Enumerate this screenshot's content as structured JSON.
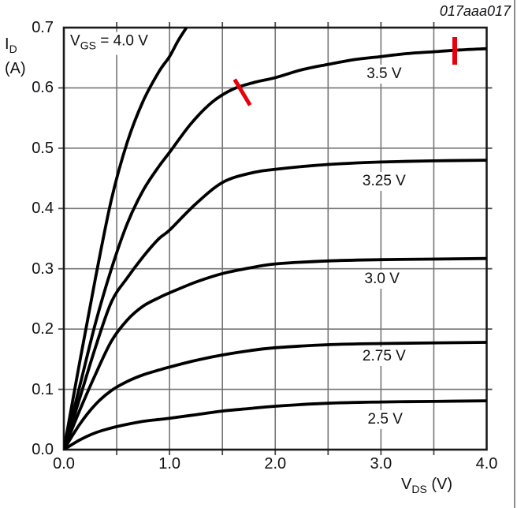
{
  "figure_id": "017aaa017",
  "colors": {
    "curve": "#000000",
    "grid": "#757575",
    "frame": "#1a1a1a",
    "tick": "#4a4a4a",
    "marker_red": "#e8000b",
    "page_border": "#8d8d8d",
    "text": "#101114"
  },
  "y_axis": {
    "sym": "I",
    "sub": "D",
    "unit": "(A)",
    "ticks": [
      "0.7",
      "0.6",
      "0.5",
      "0.4",
      "0.3",
      "0.2",
      "0.1",
      "0.0"
    ]
  },
  "x_axis": {
    "sym": "V",
    "sub": "DS",
    "unit": "(V)",
    "ticks": [
      "0.0",
      "1.0",
      "2.0",
      "3.0",
      "4.0"
    ]
  },
  "chart_data": {
    "type": "line",
    "title": "",
    "xlabel": "VDS (V)",
    "ylabel": "ID (A)",
    "xlim": [
      0,
      4
    ],
    "ylim": [
      0,
      0.7
    ],
    "x_grid_step": 0.5,
    "y_grid_step": 0.1,
    "grid": true,
    "series": [
      {
        "name": "VGS = 4.0 V",
        "vgs": "4.0 V",
        "points": [
          [
            0,
            0
          ],
          [
            0.15,
            0.145
          ],
          [
            0.3,
            0.285
          ],
          [
            0.45,
            0.415
          ],
          [
            0.6,
            0.51
          ],
          [
            0.75,
            0.578
          ],
          [
            0.9,
            0.627
          ],
          [
            1.0,
            0.652
          ],
          [
            1.08,
            0.678
          ],
          [
            1.16,
            0.7
          ]
        ]
      },
      {
        "name": "VGS = 3.5 V",
        "vgs": "3.5 V",
        "points": [
          [
            0,
            0
          ],
          [
            0.15,
            0.105
          ],
          [
            0.3,
            0.21
          ],
          [
            0.45,
            0.3
          ],
          [
            0.6,
            0.375
          ],
          [
            0.75,
            0.43
          ],
          [
            0.9,
            0.47
          ],
          [
            1.0,
            0.493
          ],
          [
            1.2,
            0.54
          ],
          [
            1.4,
            0.576
          ],
          [
            1.6,
            0.598
          ],
          [
            1.8,
            0.609
          ],
          [
            2.0,
            0.617
          ],
          [
            2.25,
            0.63
          ],
          [
            2.5,
            0.639
          ],
          [
            2.75,
            0.647
          ],
          [
            3.0,
            0.652
          ],
          [
            3.25,
            0.657
          ],
          [
            3.5,
            0.66
          ],
          [
            3.75,
            0.663
          ],
          [
            4.0,
            0.665
          ]
        ]
      },
      {
        "name": "VGS = 3.25 V",
        "vgs": "3.25 V",
        "points": [
          [
            0,
            0
          ],
          [
            0.15,
            0.085
          ],
          [
            0.3,
            0.17
          ],
          [
            0.45,
            0.245
          ],
          [
            0.6,
            0.285
          ],
          [
            0.75,
            0.32
          ],
          [
            0.9,
            0.35
          ],
          [
            1.0,
            0.364
          ],
          [
            1.25,
            0.408
          ],
          [
            1.5,
            0.443
          ],
          [
            1.75,
            0.458
          ],
          [
            2.0,
            0.465
          ],
          [
            2.5,
            0.473
          ],
          [
            3.0,
            0.477
          ],
          [
            3.5,
            0.479
          ],
          [
            4.0,
            0.48
          ]
        ]
      },
      {
        "name": "VGS = 3.0 V",
        "vgs": "3.0 V",
        "points": [
          [
            0,
            0
          ],
          [
            0.15,
            0.065
          ],
          [
            0.3,
            0.125
          ],
          [
            0.45,
            0.18
          ],
          [
            0.6,
            0.215
          ],
          [
            0.75,
            0.238
          ],
          [
            0.9,
            0.252
          ],
          [
            1.0,
            0.26
          ],
          [
            1.25,
            0.278
          ],
          [
            1.5,
            0.292
          ],
          [
            1.75,
            0.301
          ],
          [
            2.0,
            0.308
          ],
          [
            2.5,
            0.313
          ],
          [
            3.0,
            0.315
          ],
          [
            4.0,
            0.317
          ]
        ]
      },
      {
        "name": "VGS = 2.75 V",
        "vgs": "2.75 V",
        "points": [
          [
            0,
            0
          ],
          [
            0.15,
            0.042
          ],
          [
            0.3,
            0.075
          ],
          [
            0.45,
            0.098
          ],
          [
            0.6,
            0.113
          ],
          [
            0.75,
            0.124
          ],
          [
            0.9,
            0.132
          ],
          [
            1.0,
            0.137
          ],
          [
            1.25,
            0.148
          ],
          [
            1.5,
            0.157
          ],
          [
            1.75,
            0.164
          ],
          [
            2.0,
            0.169
          ],
          [
            2.5,
            0.174
          ],
          [
            3.0,
            0.176
          ],
          [
            4.0,
            0.178
          ]
        ]
      },
      {
        "name": "VGS = 2.5 V",
        "vgs": "2.5 V",
        "points": [
          [
            0,
            0
          ],
          [
            0.15,
            0.016
          ],
          [
            0.3,
            0.028
          ],
          [
            0.45,
            0.036
          ],
          [
            0.6,
            0.042
          ],
          [
            0.75,
            0.047
          ],
          [
            0.9,
            0.05
          ],
          [
            1.0,
            0.052
          ],
          [
            1.25,
            0.058
          ],
          [
            1.5,
            0.064
          ],
          [
            1.75,
            0.068
          ],
          [
            2.0,
            0.072
          ],
          [
            2.5,
            0.077
          ],
          [
            3.0,
            0.079
          ],
          [
            3.5,
            0.08
          ],
          [
            4.0,
            0.081
          ]
        ]
      }
    ],
    "curve_labels": [
      {
        "main": "V",
        "sub": "GS",
        "rest": " = 4.0 V",
        "x": 0.03,
        "y": 0.674,
        "align": "left"
      },
      {
        "main": "",
        "sub": "",
        "rest": "3.5 V",
        "x": 3.03,
        "y": 0.623,
        "align": "center"
      },
      {
        "main": "",
        "sub": "",
        "rest": "3.25 V",
        "x": 3.03,
        "y": 0.445,
        "align": "center"
      },
      {
        "main": "",
        "sub": "",
        "rest": "3.0 V",
        "x": 3.01,
        "y": 0.283,
        "align": "center"
      },
      {
        "main": "",
        "sub": "",
        "rest": "2.75 V",
        "x": 3.03,
        "y": 0.154,
        "align": "center"
      },
      {
        "main": "",
        "sub": "",
        "rest": "2.5 V",
        "x": 3.04,
        "y": 0.05,
        "align": "center"
      }
    ],
    "annotations": [
      {
        "kind": "slash",
        "x": 1.685,
        "y": 0.593
      },
      {
        "kind": "bar",
        "x": 3.698,
        "y": 0.661
      }
    ]
  }
}
